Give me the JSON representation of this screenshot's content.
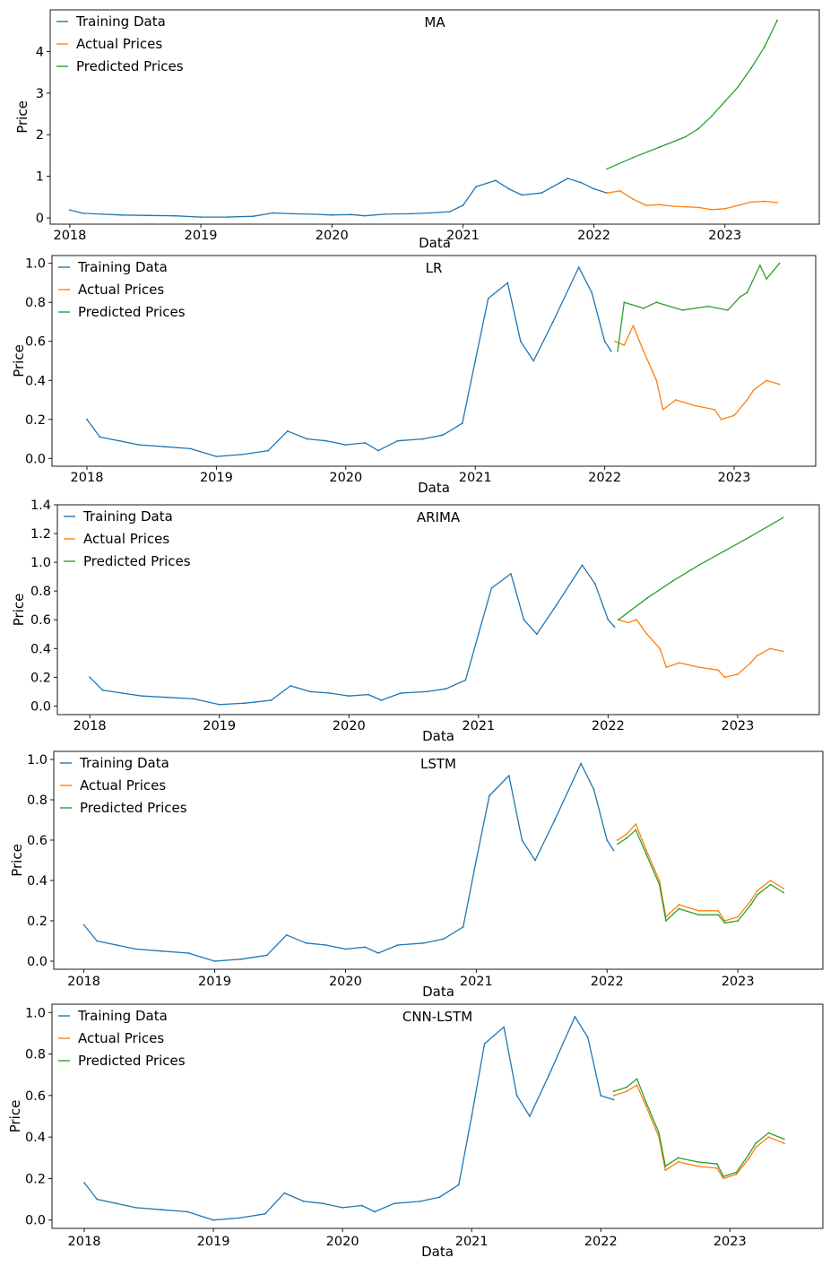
{
  "chart_data": [
    {
      "type": "line",
      "title": "MA",
      "xlabel": "Data",
      "ylabel": "Price",
      "xlim": [
        2017.85,
        2023.72
      ],
      "ylim": [
        -0.15,
        5.0
      ],
      "x_ticks": [
        2018,
        2019,
        2020,
        2021,
        2022,
        2023
      ],
      "x_tick_labels": [
        "2018",
        "2019",
        "2020",
        "2021",
        "2022",
        "2023"
      ],
      "y_ticks": [
        0,
        1,
        2,
        3,
        4
      ],
      "y_tick_labels": [
        "0",
        "1",
        "2",
        "3",
        "4"
      ],
      "legend": "top-left",
      "grid": false,
      "series": [
        {
          "name": "Training Data",
          "color": "#1f77b4",
          "x": [
            2018.0,
            2018.1,
            2018.25,
            2018.4,
            2018.6,
            2018.8,
            2019.0,
            2019.2,
            2019.4,
            2019.55,
            2019.7,
            2019.85,
            2020.0,
            2020.15,
            2020.25,
            2020.4,
            2020.6,
            2020.75,
            2020.9,
            2021.0,
            2021.1,
            2021.25,
            2021.35,
            2021.45,
            2021.6,
            2021.8,
            2021.9,
            2022.0,
            2022.1
          ],
          "y": [
            0.19,
            0.11,
            0.09,
            0.07,
            0.06,
            0.05,
            0.02,
            0.02,
            0.04,
            0.12,
            0.1,
            0.09,
            0.07,
            0.08,
            0.05,
            0.09,
            0.1,
            0.12,
            0.15,
            0.3,
            0.75,
            0.9,
            0.7,
            0.55,
            0.6,
            0.95,
            0.85,
            0.7,
            0.6
          ]
        },
        {
          "name": "Actual Prices",
          "color": "#ff7f0e",
          "x": [
            2022.1,
            2022.2,
            2022.3,
            2022.4,
            2022.5,
            2022.6,
            2022.8,
            2022.9,
            2023.0,
            2023.1,
            2023.2,
            2023.3,
            2023.4
          ],
          "y": [
            0.6,
            0.65,
            0.45,
            0.3,
            0.32,
            0.28,
            0.25,
            0.2,
            0.22,
            0.3,
            0.38,
            0.4,
            0.37
          ]
        },
        {
          "name": "Predicted Prices",
          "color": "#2ca02c",
          "x": [
            2022.1,
            2022.3,
            2022.5,
            2022.7,
            2022.8,
            2022.9,
            2023.0,
            2023.1,
            2023.2,
            2023.3,
            2023.4
          ],
          "y": [
            1.18,
            1.45,
            1.7,
            1.95,
            2.15,
            2.45,
            2.8,
            3.15,
            3.6,
            4.1,
            4.75
          ]
        }
      ]
    },
    {
      "type": "line",
      "title": "LR",
      "xlabel": "Data",
      "ylabel": "Price",
      "xlim": [
        2017.73,
        2023.63
      ],
      "ylim": [
        -0.04,
        1.04
      ],
      "x_ticks": [
        2018,
        2019,
        2020,
        2021,
        2022,
        2023
      ],
      "x_tick_labels": [
        "2018",
        "2019",
        "2020",
        "2021",
        "2022",
        "2023"
      ],
      "y_ticks": [
        0.0,
        0.2,
        0.4,
        0.6,
        0.8,
        1.0
      ],
      "y_tick_labels": [
        "0.0",
        "0.2",
        "0.4",
        "0.6",
        "0.8",
        "1.0"
      ],
      "legend": "top-left",
      "grid": false,
      "series": [
        {
          "name": "Training Data",
          "color": "#1f77b4",
          "x": [
            2018.0,
            2018.1,
            2018.25,
            2018.4,
            2018.6,
            2018.8,
            2019.0,
            2019.2,
            2019.4,
            2019.55,
            2019.7,
            2019.85,
            2020.0,
            2020.15,
            2020.25,
            2020.4,
            2020.6,
            2020.75,
            2020.9,
            2021.0,
            2021.1,
            2021.25,
            2021.35,
            2021.45,
            2021.6,
            2021.8,
            2021.9,
            2022.0,
            2022.05
          ],
          "y": [
            0.2,
            0.11,
            0.09,
            0.07,
            0.06,
            0.05,
            0.01,
            0.02,
            0.04,
            0.14,
            0.1,
            0.09,
            0.07,
            0.08,
            0.04,
            0.09,
            0.1,
            0.12,
            0.18,
            0.5,
            0.82,
            0.9,
            0.6,
            0.5,
            0.7,
            0.98,
            0.85,
            0.6,
            0.55
          ]
        },
        {
          "name": "Actual Prices",
          "color": "#ff7f0e",
          "x": [
            2022.08,
            2022.15,
            2022.22,
            2022.3,
            2022.4,
            2022.45,
            2022.55,
            2022.7,
            2022.85,
            2022.9,
            2023.0,
            2023.1,
            2023.15,
            2023.25,
            2023.35
          ],
          "y": [
            0.6,
            0.58,
            0.68,
            0.55,
            0.4,
            0.25,
            0.3,
            0.27,
            0.25,
            0.2,
            0.22,
            0.3,
            0.35,
            0.4,
            0.38
          ]
        },
        {
          "name": "Predicted Prices",
          "color": "#2ca02c",
          "x": [
            2022.1,
            2022.15,
            2022.3,
            2022.4,
            2022.6,
            2022.8,
            2022.95,
            2023.05,
            2023.1,
            2023.2,
            2023.25,
            2023.35
          ],
          "y": [
            0.55,
            0.8,
            0.77,
            0.8,
            0.76,
            0.78,
            0.76,
            0.83,
            0.85,
            0.99,
            0.92,
            1.0
          ]
        }
      ]
    },
    {
      "type": "line",
      "title": "ARIMA",
      "xlabel": "Data",
      "ylabel": "Price",
      "xlim": [
        2017.75,
        2023.63
      ],
      "ylim": [
        -0.06,
        1.4
      ],
      "x_ticks": [
        2018,
        2019,
        2020,
        2021,
        2022,
        2023
      ],
      "x_tick_labels": [
        "2018",
        "2019",
        "2020",
        "2021",
        "2022",
        "2023"
      ],
      "y_ticks": [
        0.0,
        0.2,
        0.4,
        0.6,
        0.8,
        1.0,
        1.2,
        1.4
      ],
      "y_tick_labels": [
        "0.0",
        "0.2",
        "0.4",
        "0.6",
        "0.8",
        "1.0",
        "1.2",
        "1.4"
      ],
      "legend": "top-left",
      "grid": false,
      "series": [
        {
          "name": "Training Data",
          "color": "#1f77b4",
          "x": [
            2018.0,
            2018.1,
            2018.25,
            2018.4,
            2018.6,
            2018.8,
            2019.0,
            2019.2,
            2019.4,
            2019.55,
            2019.7,
            2019.85,
            2020.0,
            2020.15,
            2020.25,
            2020.4,
            2020.6,
            2020.75,
            2020.9,
            2021.0,
            2021.1,
            2021.25,
            2021.35,
            2021.45,
            2021.6,
            2021.8,
            2021.9,
            2022.0,
            2022.05
          ],
          "y": [
            0.2,
            0.11,
            0.09,
            0.07,
            0.06,
            0.05,
            0.01,
            0.02,
            0.04,
            0.14,
            0.1,
            0.09,
            0.07,
            0.08,
            0.04,
            0.09,
            0.1,
            0.12,
            0.18,
            0.5,
            0.82,
            0.92,
            0.6,
            0.5,
            0.7,
            0.98,
            0.85,
            0.6,
            0.55
          ]
        },
        {
          "name": "Actual Prices",
          "color": "#ff7f0e",
          "x": [
            2022.08,
            2022.15,
            2022.22,
            2022.3,
            2022.4,
            2022.45,
            2022.55,
            2022.7,
            2022.85,
            2022.9,
            2023.0,
            2023.1,
            2023.15,
            2023.25,
            2023.35
          ],
          "y": [
            0.6,
            0.58,
            0.6,
            0.5,
            0.4,
            0.27,
            0.3,
            0.27,
            0.25,
            0.2,
            0.22,
            0.3,
            0.35,
            0.4,
            0.38
          ]
        },
        {
          "name": "Predicted Prices",
          "color": "#2ca02c",
          "x": [
            2022.08,
            2022.3,
            2022.5,
            2022.7,
            2022.9,
            2023.1,
            2023.35
          ],
          "y": [
            0.6,
            0.75,
            0.87,
            0.98,
            1.08,
            1.18,
            1.31
          ]
        }
      ]
    },
    {
      "type": "line",
      "title": "LSTM",
      "xlabel": "Data",
      "ylabel": "Price",
      "xlim": [
        2017.77,
        2023.65
      ],
      "ylim": [
        -0.04,
        1.04
      ],
      "x_ticks": [
        2018,
        2019,
        2020,
        2021,
        2022,
        2023
      ],
      "x_tick_labels": [
        "2018",
        "2019",
        "2020",
        "2021",
        "2022",
        "2023"
      ],
      "y_ticks": [
        0.0,
        0.2,
        0.4,
        0.6,
        0.8,
        1.0
      ],
      "y_tick_labels": [
        "0.0",
        "0.2",
        "0.4",
        "0.6",
        "0.8",
        "1.0"
      ],
      "legend": "top-left",
      "grid": false,
      "series": [
        {
          "name": "Training Data",
          "color": "#1f77b4",
          "x": [
            2018.0,
            2018.1,
            2018.25,
            2018.4,
            2018.6,
            2018.8,
            2019.0,
            2019.2,
            2019.4,
            2019.55,
            2019.7,
            2019.85,
            2020.0,
            2020.15,
            2020.25,
            2020.4,
            2020.6,
            2020.75,
            2020.9,
            2021.0,
            2021.1,
            2021.25,
            2021.35,
            2021.45,
            2021.6,
            2021.8,
            2021.9,
            2022.0,
            2022.05
          ],
          "y": [
            0.18,
            0.1,
            0.08,
            0.06,
            0.05,
            0.04,
            0.0,
            0.01,
            0.03,
            0.13,
            0.09,
            0.08,
            0.06,
            0.07,
            0.04,
            0.08,
            0.09,
            0.11,
            0.17,
            0.5,
            0.82,
            0.92,
            0.6,
            0.5,
            0.7,
            0.98,
            0.85,
            0.6,
            0.55
          ]
        },
        {
          "name": "Actual Prices",
          "color": "#ff7f0e",
          "x": [
            2022.08,
            2022.15,
            2022.22,
            2022.3,
            2022.4,
            2022.45,
            2022.55,
            2022.7,
            2022.85,
            2022.9,
            2023.0,
            2023.1,
            2023.15,
            2023.25,
            2023.35
          ],
          "y": [
            0.6,
            0.63,
            0.68,
            0.55,
            0.4,
            0.22,
            0.28,
            0.25,
            0.25,
            0.2,
            0.22,
            0.3,
            0.35,
            0.4,
            0.36
          ]
        },
        {
          "name": "Predicted Prices",
          "color": "#2ca02c",
          "x": [
            2022.08,
            2022.15,
            2022.22,
            2022.3,
            2022.4,
            2022.45,
            2022.55,
            2022.7,
            2022.85,
            2022.9,
            2023.0,
            2023.1,
            2023.15,
            2023.25,
            2023.35
          ],
          "y": [
            0.58,
            0.61,
            0.65,
            0.53,
            0.38,
            0.2,
            0.26,
            0.23,
            0.23,
            0.19,
            0.2,
            0.28,
            0.33,
            0.38,
            0.34
          ]
        }
      ]
    },
    {
      "type": "line",
      "title": "CNN-LSTM",
      "xlabel": "Data",
      "ylabel": "Price",
      "xlim": [
        2017.75,
        2023.72
      ],
      "ylim": [
        -0.04,
        1.04
      ],
      "x_ticks": [
        2018,
        2019,
        2020,
        2021,
        2022,
        2023
      ],
      "x_tick_labels": [
        "2018",
        "2019",
        "2020",
        "2021",
        "2022",
        "2023"
      ],
      "y_ticks": [
        0.0,
        0.2,
        0.4,
        0.6,
        0.8,
        1.0
      ],
      "y_tick_labels": [
        "0.0",
        "0.2",
        "0.4",
        "0.6",
        "0.8",
        "1.0"
      ],
      "legend": "top-left",
      "grid": false,
      "series": [
        {
          "name": "Training Data",
          "color": "#1f77b4",
          "x": [
            2018.0,
            2018.1,
            2018.25,
            2018.4,
            2018.6,
            2018.8,
            2019.0,
            2019.2,
            2019.4,
            2019.55,
            2019.7,
            2019.85,
            2020.0,
            2020.15,
            2020.25,
            2020.4,
            2020.6,
            2020.75,
            2020.9,
            2021.0,
            2021.1,
            2021.25,
            2021.35,
            2021.45,
            2021.6,
            2021.8,
            2021.9,
            2022.0,
            2022.1
          ],
          "y": [
            0.18,
            0.1,
            0.08,
            0.06,
            0.05,
            0.04,
            0.0,
            0.01,
            0.03,
            0.13,
            0.09,
            0.08,
            0.06,
            0.07,
            0.04,
            0.08,
            0.09,
            0.11,
            0.17,
            0.5,
            0.85,
            0.93,
            0.6,
            0.5,
            0.7,
            0.98,
            0.88,
            0.6,
            0.58
          ]
        },
        {
          "name": "Actual Prices",
          "color": "#ff7f0e",
          "x": [
            2022.1,
            2022.2,
            2022.28,
            2022.35,
            2022.45,
            2022.5,
            2022.6,
            2022.75,
            2022.9,
            2022.95,
            2023.05,
            2023.15,
            2023.2,
            2023.3,
            2023.42
          ],
          "y": [
            0.6,
            0.62,
            0.65,
            0.55,
            0.4,
            0.24,
            0.28,
            0.26,
            0.25,
            0.2,
            0.22,
            0.3,
            0.35,
            0.4,
            0.37
          ]
        },
        {
          "name": "Predicted Prices",
          "color": "#2ca02c",
          "x": [
            2022.1,
            2022.2,
            2022.28,
            2022.35,
            2022.45,
            2022.5,
            2022.6,
            2022.75,
            2022.9,
            2022.95,
            2023.05,
            2023.15,
            2023.2,
            2023.3,
            2023.42
          ],
          "y": [
            0.62,
            0.64,
            0.68,
            0.57,
            0.42,
            0.26,
            0.3,
            0.28,
            0.27,
            0.21,
            0.23,
            0.32,
            0.37,
            0.42,
            0.39
          ]
        }
      ]
    }
  ]
}
